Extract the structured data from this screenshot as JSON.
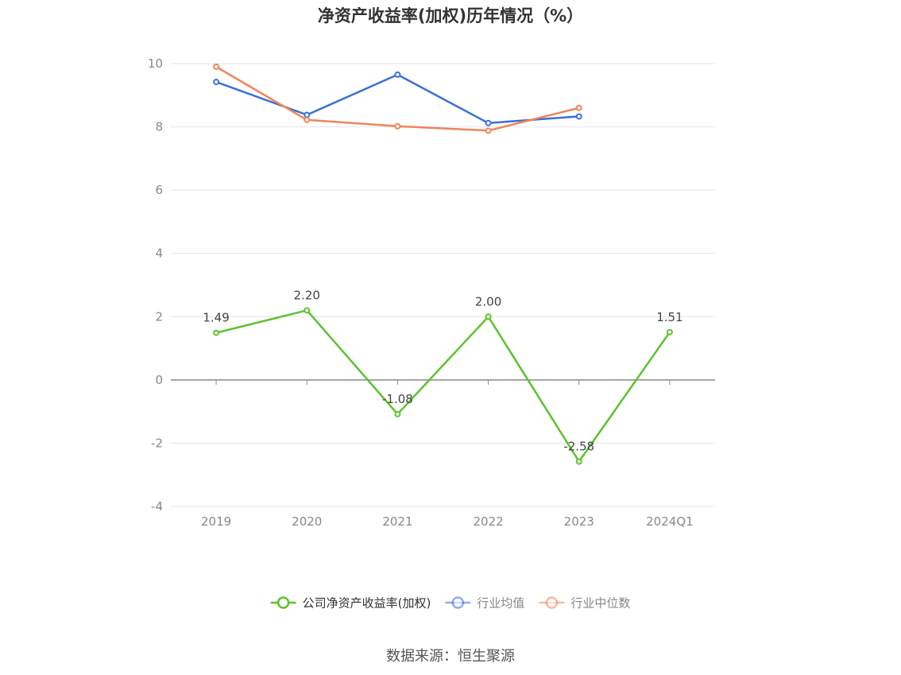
{
  "source": "数据来源：恒生聚源",
  "chart_data": {
    "type": "line",
    "title": "净资产收益率(加权)历年情况（%）",
    "categories": [
      "2019",
      "2020",
      "2021",
      "2022",
      "2023",
      "2024Q1"
    ],
    "y_ticks": [
      "10",
      "8",
      "6",
      "4",
      "2",
      "0",
      "-2",
      "-4"
    ],
    "ylim": [
      -4,
      10
    ],
    "grid": true,
    "legend_position": "bottom",
    "series": [
      {
        "name": "公司净资产收益率(加权)",
        "color": "#5cc22c",
        "values": [
          1.49,
          2.2,
          -1.08,
          2.0,
          -2.58,
          1.51
        ],
        "labels": [
          "1.49",
          "2.20",
          "-1.08",
          "2.00",
          "-2.58",
          "1.51"
        ]
      },
      {
        "name": "行业均值",
        "color": "#3a6fd8",
        "values": [
          9.42,
          8.38,
          9.65,
          8.12,
          8.33,
          null
        ]
      },
      {
        "name": "行业中位数",
        "color": "#f0845a",
        "values": [
          9.9,
          8.22,
          8.02,
          7.88,
          8.6,
          null
        ]
      }
    ]
  }
}
